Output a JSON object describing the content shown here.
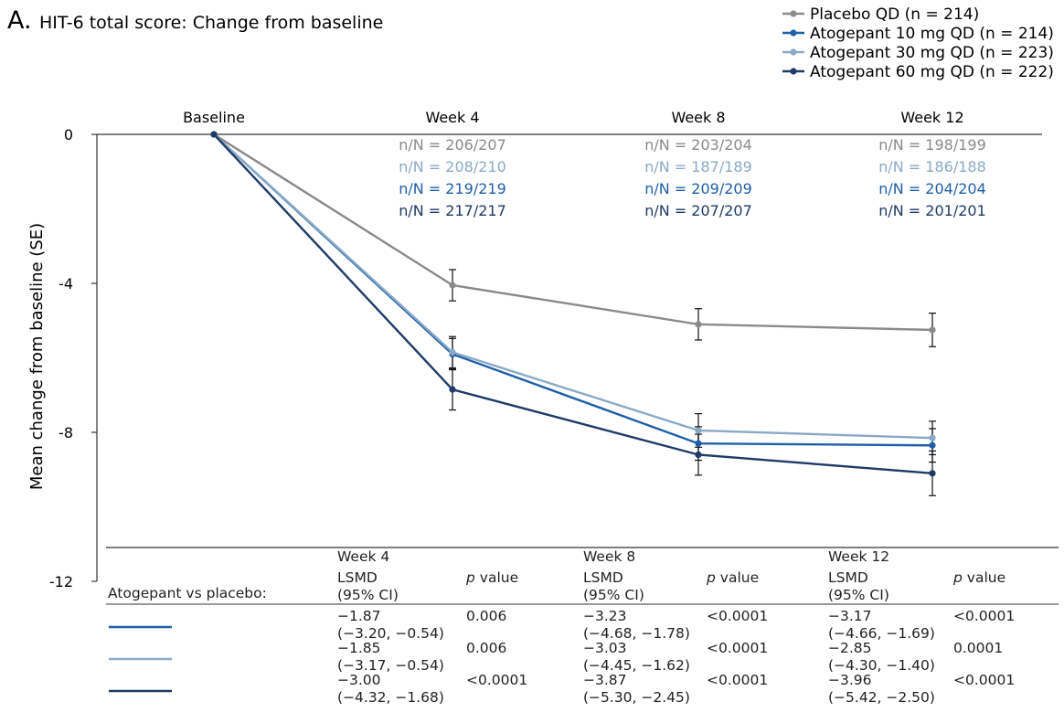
{
  "chart_data": {
    "type": "line",
    "panel_letter": "A.",
    "title": "HIT-6 total score: Change from baseline",
    "ylabel": "Mean change from baseline (SE)",
    "ylim": [
      -12,
      0
    ],
    "yticks": [
      0,
      -4,
      -8,
      -12
    ],
    "categories": [
      "Baseline",
      "Week 4",
      "Week 8",
      "Week 12"
    ],
    "legend_position": "top-right",
    "series": [
      {
        "name": "Placebo QD (n = 214)",
        "color": "#8a8a8a",
        "values": [
          0,
          -4.05,
          -5.1,
          -5.25
        ],
        "se": [
          0,
          0.42,
          0.42,
          0.45
        ],
        "nn": [
          "n/N = 206/207",
          "n/N = 203/204",
          "n/N = 198/199"
        ]
      },
      {
        "name": "Atogepant 10 mg QD (n = 214)",
        "color": "#1f5fa8",
        "values": [
          0,
          -5.9,
          -8.3,
          -8.35
        ],
        "se": [
          0,
          0.42,
          0.45,
          0.45
        ],
        "nn": [
          "n/N = 219/219",
          "n/N = 209/209",
          "n/N = 204/204"
        ]
      },
      {
        "name": "Atogepant 30 mg QD (n = 223)",
        "color": "#8aa9c6",
        "values": [
          0,
          -5.85,
          -7.95,
          -8.15
        ],
        "se": [
          0,
          0.42,
          0.45,
          0.45
        ],
        "nn": [
          "n/N = 208/210",
          "n/N = 187/189",
          "n/N = 186/188"
        ]
      },
      {
        "name": "Atogepant 60 mg QD (n = 222)",
        "color": "#1e3a66",
        "values": [
          0,
          -6.85,
          -8.6,
          -9.1
        ],
        "se": [
          0,
          0.55,
          0.55,
          0.6
        ],
        "nn": [
          "n/N = 217/217",
          "n/N = 207/207",
          "n/N = 201/201"
        ]
      }
    ],
    "nn_order": [
      0,
      2,
      1,
      3
    ],
    "table": {
      "row_header": "Atogepant vs placebo:",
      "weeks": [
        "Week 4",
        "Week 8",
        "Week 12"
      ],
      "col_lsmd": [
        "LSMD",
        "(95% CI)"
      ],
      "col_p_italic": "p",
      "col_p_rest": " value",
      "rows": [
        {
          "series_index": 1,
          "cells": [
            {
              "lsmd": "−1.87",
              "ci": "(−3.20, −0.54)",
              "p": "0.006"
            },
            {
              "lsmd": "−3.23",
              "ci": "(−4.68, −1.78)",
              "p": "<0.0001"
            },
            {
              "lsmd": "−3.17",
              "ci": "(−4.66, −1.69)",
              "p": "<0.0001"
            }
          ]
        },
        {
          "series_index": 2,
          "cells": [
            {
              "lsmd": "−1.85",
              "ci": "(−3.17, −0.54)",
              "p": "0.006"
            },
            {
              "lsmd": "−3.03",
              "ci": "(−4.45, −1.62)",
              "p": "<0.0001"
            },
            {
              "lsmd": "−2.85",
              "ci": "(−4.30, −1.40)",
              "p": "0.0001"
            }
          ]
        },
        {
          "series_index": 3,
          "cells": [
            {
              "lsmd": "−3.00",
              "ci": "(−4.32, −1.68)",
              "p": "<0.0001"
            },
            {
              "lsmd": "−3.87",
              "ci": "(−5.30, −2.45)",
              "p": "<0.0001"
            },
            {
              "lsmd": "−3.96",
              "ci": "(−5.42, −2.50)",
              "p": "<0.0001"
            }
          ]
        }
      ]
    }
  }
}
